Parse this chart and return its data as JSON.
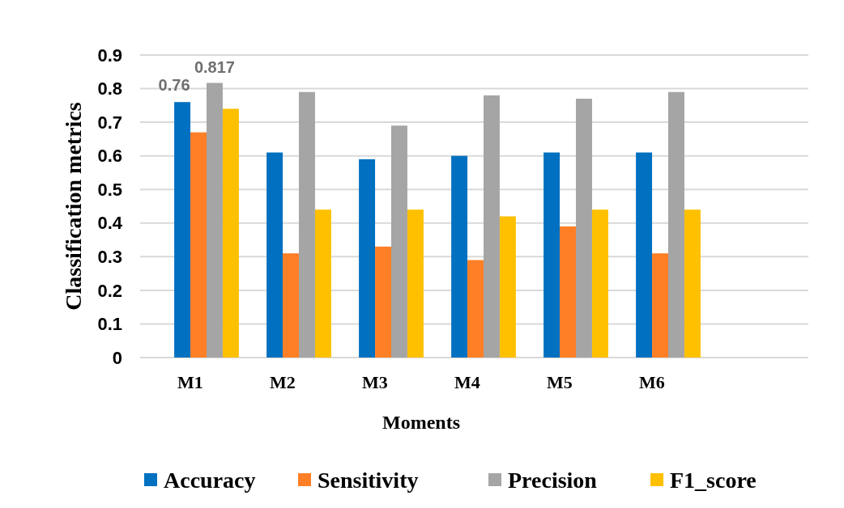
{
  "chart_data": {
    "type": "bar",
    "xlabel": "Moments",
    "ylabel": "Classification metrics",
    "categories": [
      "M1",
      "M2",
      "M3",
      "M4",
      "M5",
      "M6"
    ],
    "series": [
      {
        "name": "Accuracy",
        "color": "#0070c0",
        "values": [
          0.76,
          0.61,
          0.59,
          0.6,
          0.61,
          0.61
        ],
        "value_labels": [
          "0.76",
          null,
          null,
          null,
          null,
          null
        ]
      },
      {
        "name": "Sensitivity",
        "color": "#ff7f27",
        "values": [
          0.67,
          0.31,
          0.33,
          0.29,
          0.39,
          0.31
        ]
      },
      {
        "name": "Precision",
        "color": "#a5a5a5",
        "values": [
          0.817,
          0.79,
          0.69,
          0.78,
          0.77,
          0.79
        ],
        "value_labels": [
          "0.817",
          null,
          null,
          null,
          null,
          null
        ]
      },
      {
        "name": "F1_score",
        "color": "#ffc000",
        "values": [
          0.74,
          0.44,
          0.44,
          0.42,
          0.44,
          0.44
        ]
      }
    ],
    "ylim": [
      0,
      0.9
    ],
    "yticks": [
      0,
      0.1,
      0.2,
      0.3,
      0.4,
      0.5,
      0.6,
      0.7,
      0.8,
      0.9
    ],
    "grid": true,
    "legend": "bottom"
  }
}
